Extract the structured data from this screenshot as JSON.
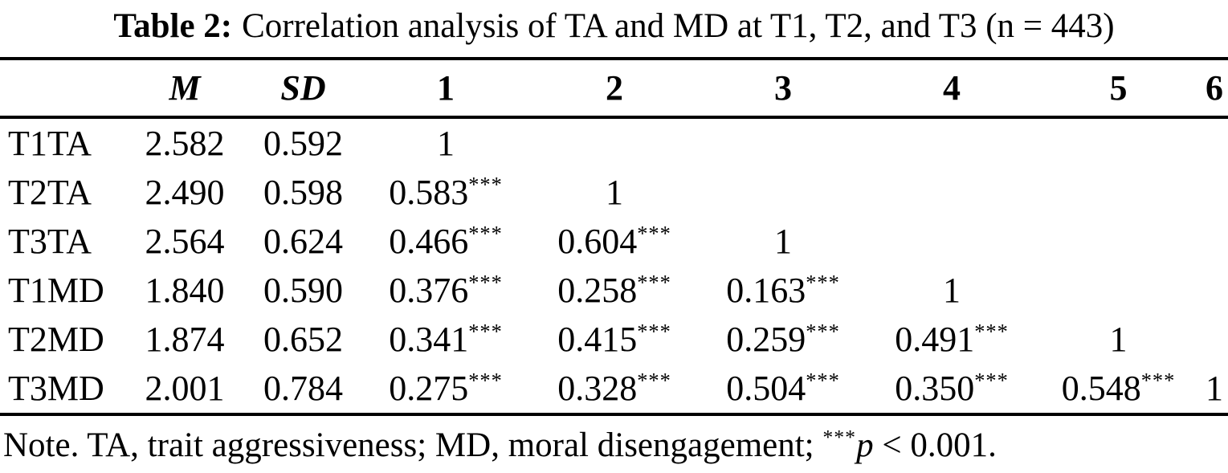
{
  "title": {
    "label": "Table 2:",
    "text": "Correlation analysis of TA and MD at T1, T2, and T3 (n = 443)"
  },
  "table": {
    "header": [
      "",
      "M",
      "SD",
      "1",
      "2",
      "3",
      "4",
      "5",
      "6"
    ],
    "rows": [
      [
        "T1TA",
        "2.582",
        "0.592",
        "1",
        "",
        "",
        "",
        "",
        ""
      ],
      [
        "T2TA",
        "2.490",
        "0.598",
        "0.583***",
        "1",
        "",
        "",
        "",
        ""
      ],
      [
        "T3TA",
        "2.564",
        "0.624",
        "0.466***",
        "0.604***",
        "1",
        "",
        "",
        ""
      ],
      [
        "T1MD",
        "1.840",
        "0.590",
        "0.376***",
        "0.258***",
        "0.163***",
        "1",
        "",
        ""
      ],
      [
        "T2MD",
        "1.874",
        "0.652",
        "0.341***",
        "0.415***",
        "0.259***",
        "0.491***",
        "1",
        ""
      ],
      [
        "T3MD",
        "2.001",
        "0.784",
        "0.275***",
        "0.328***",
        "0.504***",
        "0.350***",
        "0.548***",
        "1"
      ]
    ]
  },
  "note": {
    "prefix": "Note. TA, trait aggressiveness; MD, moral disengagement; ",
    "stars": "***",
    "p": "p",
    "suffix": " < 0.001."
  }
}
